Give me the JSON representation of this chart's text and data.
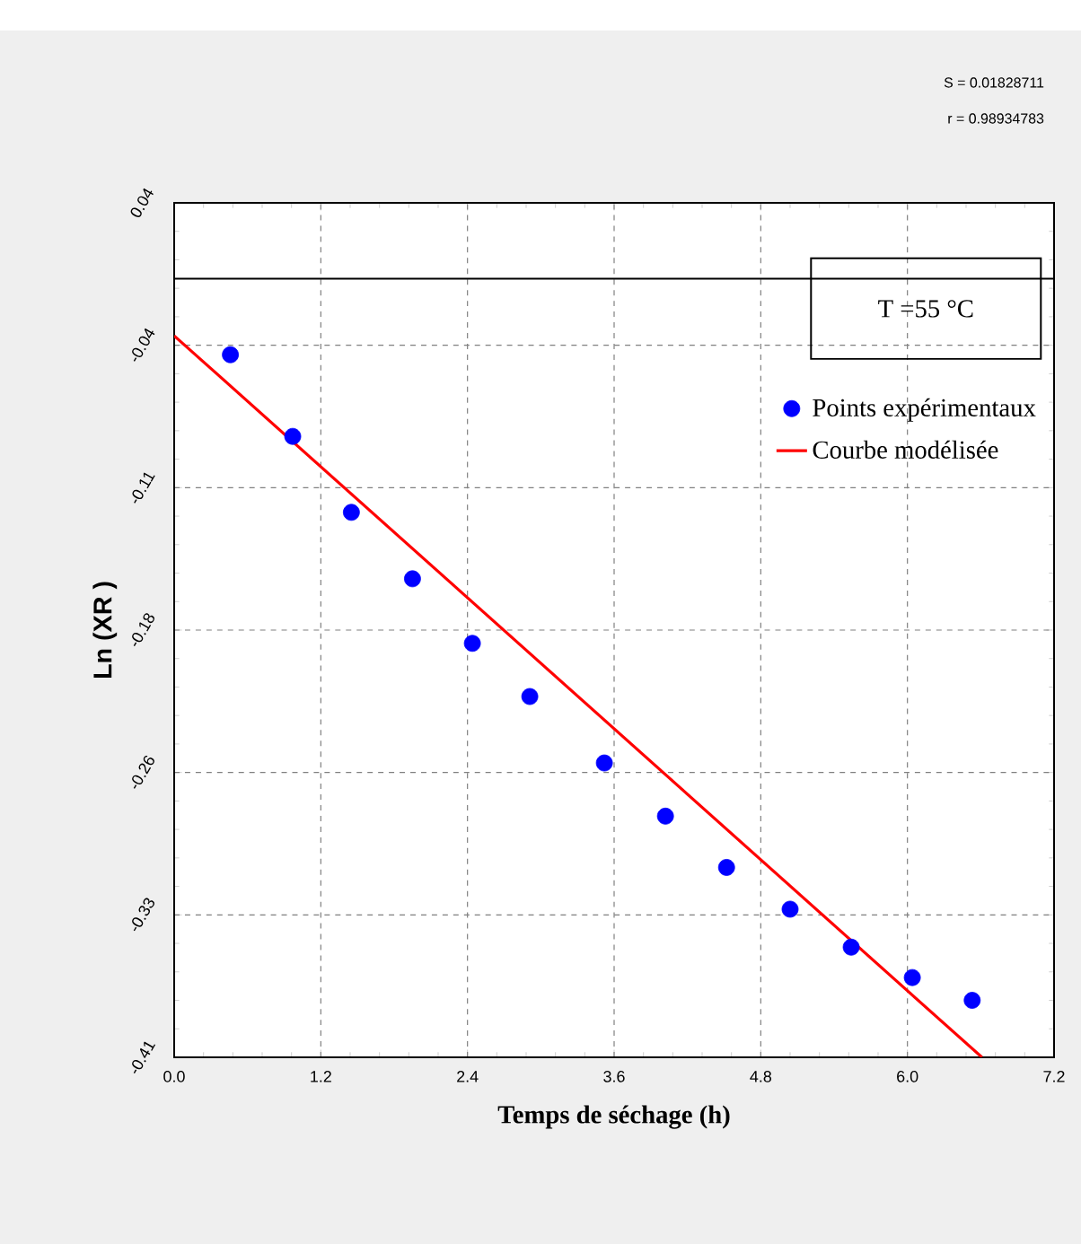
{
  "chart_data": {
    "type": "scatter",
    "xlabel": "Temps de séchage (h)",
    "ylabel": "Ln (XR )",
    "annotations": [
      "S = 0.01828711",
      "r = 0.98934783",
      "T =55 °C"
    ],
    "xlim": [
      0,
      7.2
    ],
    "ylim": [
      -0.41,
      0.04
    ],
    "xticks": [
      {
        "value": 0,
        "label": "0.0"
      },
      1.2,
      2.4,
      3.6,
      4.8,
      {
        "value": 6,
        "label": "6.0"
      },
      7.2
    ],
    "yticks": [
      {
        "value": -0.41,
        "label": "-0.41"
      },
      {
        "value": -0.335,
        "label": "-0.33"
      },
      -0.26,
      {
        "value": -0.185,
        "label": "-0.18"
      },
      -0.11,
      {
        "value": -0.035,
        "label": "-0.04"
      },
      0.04
    ],
    "grid": true,
    "legend": "right",
    "ref_lines": [
      {
        "axis": "y",
        "value": 0,
        "color": "#000000"
      }
    ],
    "series": [
      {
        "name": "Points expérimentaux",
        "type": "scatter",
        "marker": "circle",
        "color": "#0000ff",
        "x": [
          0.46,
          0.97,
          1.45,
          1.95,
          2.44,
          2.91,
          3.52,
          4.02,
          4.52,
          5.04,
          5.54,
          6.04,
          6.53
        ],
        "values": [
          -0.04,
          -0.083,
          -0.123,
          -0.158,
          -0.192,
          -0.22,
          -0.255,
          -0.283,
          -0.31,
          -0.332,
          -0.352,
          -0.368,
          -0.38
        ]
      },
      {
        "name": "Courbe modélisée",
        "type": "line",
        "marker": "none",
        "line_style": "solid",
        "color": "#ff0000",
        "x": [
          0,
          6.61
        ],
        "values": [
          -0.03,
          -0.41
        ]
      }
    ]
  }
}
